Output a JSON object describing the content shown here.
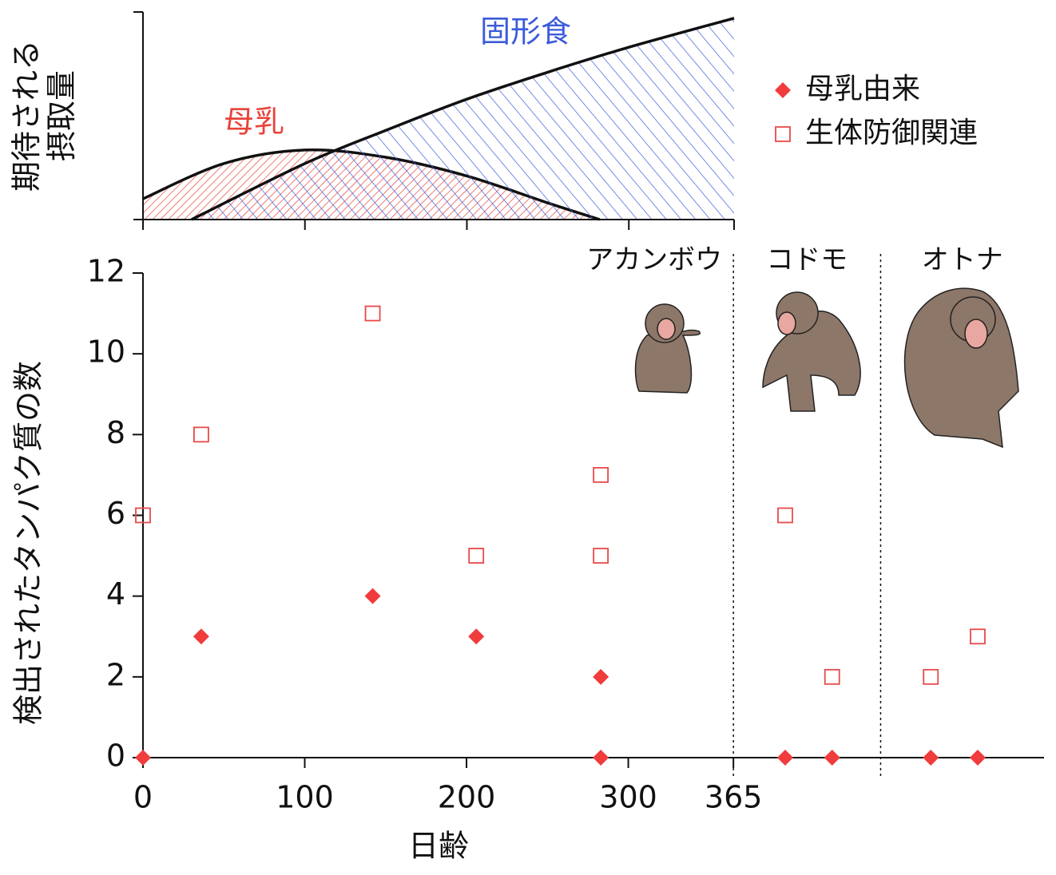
{
  "chart_data": [
    {
      "type": "area",
      "ylabel": [
        "期待される",
        "摂取量"
      ],
      "xlim": [
        0,
        365
      ],
      "ylim": [
        0,
        100
      ],
      "xticks": [
        0,
        100,
        200,
        300,
        365
      ],
      "series": [
        {
          "name": "母乳",
          "color": "#e8443a",
          "x": [
            0,
            50,
            100,
            150,
            200,
            250,
            282
          ],
          "values": [
            10,
            27,
            33.5,
            30,
            21,
            8,
            0
          ]
        },
        {
          "name": "固形食",
          "color": "#3b5bdb",
          "x": [
            30,
            100,
            150,
            200,
            250,
            300,
            365
          ],
          "values": [
            0,
            27,
            43,
            58,
            71,
            83,
            97
          ]
        }
      ]
    },
    {
      "type": "scatter",
      "xlabel": "日齢",
      "ylabel": "検出されたタンパク質の数",
      "xlim": [
        0,
        557
      ],
      "ylim": [
        0,
        12
      ],
      "xticks": [
        0,
        100,
        200,
        300,
        365
      ],
      "yticks": [
        0,
        2,
        4,
        6,
        8,
        10,
        12
      ],
      "stages": [
        "アカンボウ",
        "コドモ",
        "オトナ"
      ],
      "dividers": [
        365,
        456
      ],
      "legend": "upper right",
      "series": [
        {
          "name": "母乳由来",
          "color": "#f03c3c",
          "marker": "diamond",
          "x": [
            0,
            36,
            142,
            206,
            283,
            283,
            397,
            426,
            487,
            516
          ],
          "values": [
            0,
            3,
            4,
            3,
            2,
            0,
            0,
            0,
            0,
            0
          ]
        },
        {
          "name": "生体防御関連",
          "color": "#e84a4a",
          "marker": "square",
          "x": [
            0,
            36,
            142,
            206,
            283,
            283,
            397,
            426,
            487,
            516
          ],
          "values": [
            6,
            8,
            11,
            5,
            7,
            5,
            6,
            2,
            2,
            3
          ]
        }
      ]
    }
  ]
}
